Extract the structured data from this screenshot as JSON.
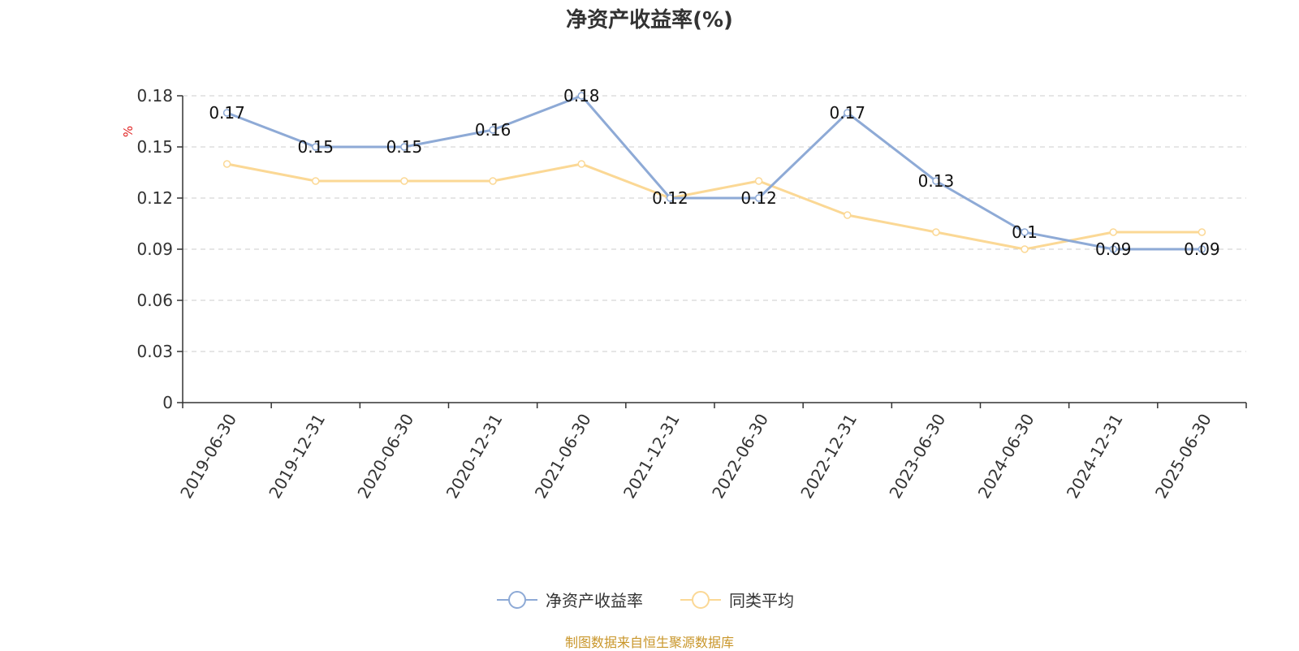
{
  "chart_data": {
    "type": "line",
    "title": "净资产收益率(%)",
    "ylabel": "%",
    "ylim": [
      0,
      0.18
    ],
    "y_ticks": [
      "0",
      "0.03",
      "0.06",
      "0.09",
      "0.12",
      "0.15",
      "0.18"
    ],
    "categories": [
      "2019-06-30",
      "2019-12-31",
      "2020-06-30",
      "2020-12-31",
      "2021-06-30",
      "2021-12-31",
      "2022-06-30",
      "2022-12-31",
      "2023-06-30",
      "2024-06-30",
      "2024-12-31",
      "2025-06-30"
    ],
    "grid": true,
    "legend_position": "bottom",
    "series": [
      {
        "name": "净资产收益率",
        "color": "#8eaad6",
        "values": [
          0.17,
          0.15,
          0.15,
          0.16,
          0.18,
          0.12,
          0.12,
          0.17,
          0.13,
          0.1,
          0.09,
          0.09
        ],
        "labels": [
          "0.17",
          "0.15",
          "0.15",
          "0.16",
          "0.18",
          "0.12",
          "0.12",
          "0.17",
          "0.13",
          "0.1",
          "0.09",
          "0.09"
        ]
      },
      {
        "name": "同类平均",
        "color": "#fbd895",
        "values": [
          0.14,
          0.13,
          0.13,
          0.13,
          0.14,
          0.12,
          0.13,
          0.11,
          0.1,
          0.09,
          0.1,
          0.1
        ]
      }
    ]
  },
  "source": "制图数据来自恒生聚源数据库"
}
